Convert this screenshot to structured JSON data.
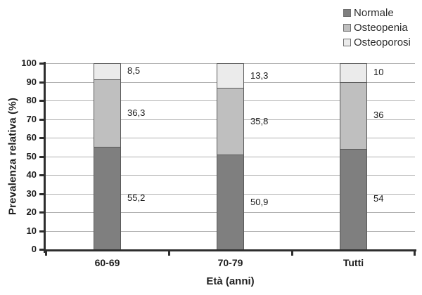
{
  "chart_data": {
    "type": "bar",
    "variant": "stacked-vertical",
    "categories": [
      "60-69",
      "70-79",
      "Tutti"
    ],
    "series": [
      {
        "name": "Normale",
        "color": "#7f7f7f",
        "values": [
          55.2,
          50.9,
          54
        ]
      },
      {
        "name": "Osteopenia",
        "color": "#bfbfbf",
        "values": [
          36.3,
          35.8,
          36
        ]
      },
      {
        "name": "Osteoporosi",
        "color": "#ebebeb",
        "values": [
          8.5,
          13.3,
          10
        ]
      }
    ],
    "value_labels": [
      [
        "55,2",
        "36,3",
        "8,5"
      ],
      [
        "50,9",
        "35,8",
        "13,3"
      ],
      [
        "54",
        "36",
        "10"
      ]
    ],
    "title": "",
    "xlabel": "Età (anni)",
    "ylabel": "Prevalenza relativa (%)",
    "ylim": [
      0,
      100
    ],
    "ytick_step": 10,
    "ytick_labels": [
      "0",
      "10",
      "20",
      "30",
      "40",
      "50",
      "60",
      "70",
      "80",
      "90",
      "100"
    ],
    "grid": true,
    "legend_position": "top-right",
    "colors": {
      "axis": "#2e2e2e",
      "gridline": "#b0b0b0",
      "segment_border": "#595959",
      "text": "#1f1f1f"
    }
  }
}
